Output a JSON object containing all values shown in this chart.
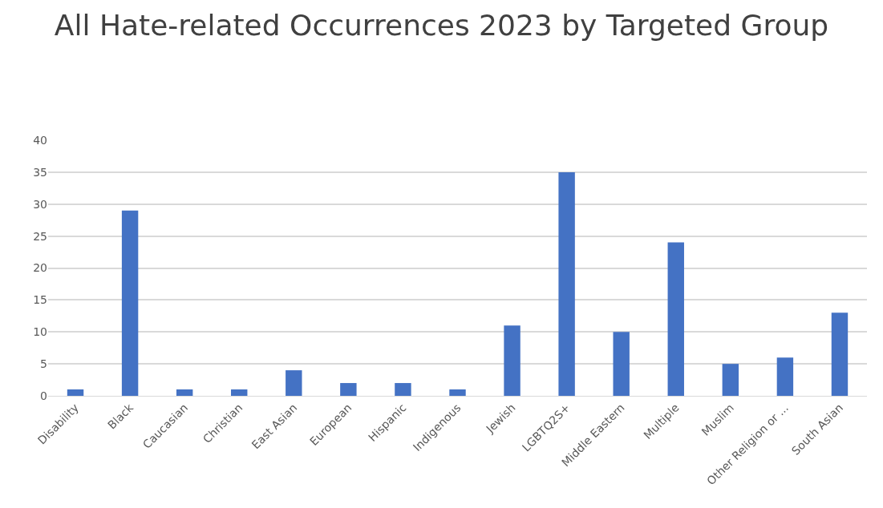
{
  "chart_data": {
    "type": "bar",
    "title": "All Hate-related Occurrences 2023 by Targeted Group",
    "categories": [
      "Disability",
      "Black",
      "Caucasian",
      "Christian",
      "East Asian",
      "European",
      "Hispanic",
      "Indigenous",
      "Jewish",
      "LGBTQ2S+",
      "Middle Eastern",
      "Multiple",
      "Muslim",
      "Other Religion or ...",
      "South Asian"
    ],
    "values": [
      1,
      29,
      1,
      1,
      4,
      2,
      2,
      1,
      11,
      35,
      10,
      24,
      5,
      6,
      13
    ],
    "color": "#4472c4",
    "ylim": [
      0,
      40
    ],
    "yticks": [
      0,
      5,
      10,
      15,
      20,
      25,
      30,
      35,
      40
    ],
    "grid": "y"
  }
}
